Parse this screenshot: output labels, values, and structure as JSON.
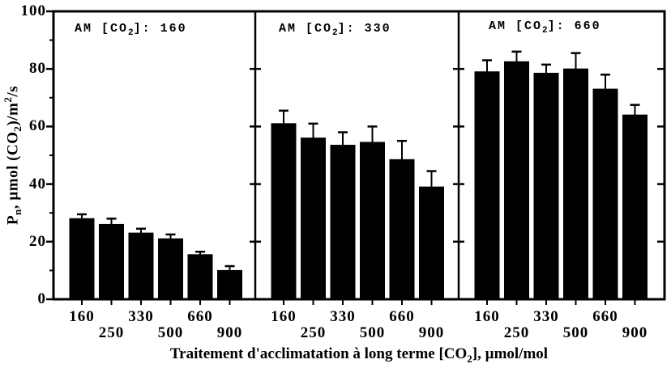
{
  "chart_data": {
    "type": "bar",
    "title": "",
    "categories": [
      "160",
      "250",
      "330",
      "500",
      "660",
      "900"
    ],
    "panels": [
      {
        "title": "AM [CO2]: 160",
        "title_parts": {
          "pre": "AM [CO",
          "sub": "2",
          "post": "]: 160"
        },
        "values": [
          28,
          26,
          23,
          21,
          15.5,
          10
        ],
        "errors": [
          1.5,
          2,
          1.5,
          1.5,
          1,
          1.5
        ]
      },
      {
        "title": "AM [CO2]: 330",
        "title_parts": {
          "pre": "AM [CO",
          "sub": "2",
          "post": "]: 330"
        },
        "values": [
          61,
          56,
          53.5,
          54.5,
          48.5,
          39
        ],
        "errors": [
          4.5,
          5,
          4.5,
          5.5,
          6.5,
          5.5
        ]
      },
      {
        "title": "AM [CO2]: 660",
        "title_parts": {
          "pre": "AM [CO",
          "sub": "2",
          "post": "]: 660"
        },
        "values": [
          79,
          82.5,
          78.5,
          80,
          73,
          64
        ],
        "errors": [
          4,
          3.5,
          3,
          5.5,
          5,
          3.5
        ]
      }
    ],
    "ylabel": "Pn, µmol (CO2)/m2/s",
    "ylabel_parts": {
      "base1": "P",
      "sub1": "n",
      "base2": ", µmol (CO",
      "sub2": "2",
      "base3": ")/m",
      "sup1": "2",
      "base4": "/s"
    },
    "xlabel": "Traitement d'acclimatation à long terme [CO2], µmol/mol",
    "xlabel_parts": {
      "base1": "Traitement d'acclimatation à long terme [CO",
      "sub1": "2",
      "base2": "], µmol/mol"
    },
    "ylim": [
      0,
      100
    ],
    "yticks": [
      "0",
      "20",
      "40",
      "60",
      "80",
      "100"
    ],
    "y_minor_ticks": [
      10,
      30,
      50,
      70,
      90
    ],
    "grid": false,
    "legend": "none",
    "bar_color": "#000000",
    "background": "#ffffff"
  }
}
